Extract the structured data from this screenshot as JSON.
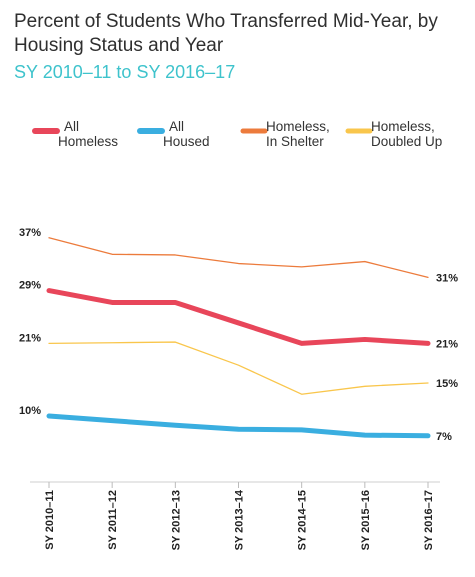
{
  "chart_data": {
    "type": "line",
    "title": "Percent of Students Who Transferred Mid-Year, by Housing Status and Year",
    "subtitle": "SY 2010–11 to SY 2016–17",
    "categories": [
      "SY 2010–11",
      "SY 2011–12",
      "SY 2012–13",
      "SY 2013–14",
      "SY 2014–15",
      "SY 2015–16",
      "SY 2016–17"
    ],
    "ylim": [
      0,
      45
    ],
    "series": [
      {
        "name": "All Homeless",
        "legend_lines": [
          "All",
          "Homeless"
        ],
        "color": "#e8465a",
        "width": 5,
        "values": [
          29,
          27.2,
          27.2,
          24.1,
          21,
          21.6,
          21
        ]
      },
      {
        "name": "All Housed",
        "legend_lines": [
          "All",
          "Housed"
        ],
        "color": "#3aaee0",
        "width": 5,
        "values": [
          10,
          9.3,
          8.6,
          8.0,
          7.9,
          7.1,
          7
        ]
      },
      {
        "name": "Homeless, In Shelter",
        "legend_lines": [
          "Homeless,",
          "In Shelter"
        ],
        "color": "#ec7b3c",
        "width": 1.3,
        "values": [
          37,
          34.5,
          34.4,
          33.1,
          32.6,
          33.4,
          31
        ]
      },
      {
        "name": "Homeless, Doubled Up",
        "legend_lines": [
          "Homeless,",
          "Doubled Up"
        ],
        "color": "#f9c64c",
        "width": 1.3,
        "values": [
          21,
          21.1,
          21.2,
          17.7,
          13.3,
          14.5,
          15
        ]
      }
    ],
    "start_labels": [
      "37%",
      "29%",
      "21%",
      "10%"
    ],
    "start_values": [
      37,
      29,
      21,
      10
    ],
    "end_labels": [
      "31%",
      "21%",
      "15%",
      "7%"
    ],
    "end_values": [
      31,
      21,
      15,
      7
    ],
    "legend_placement": "top",
    "grid": false
  }
}
